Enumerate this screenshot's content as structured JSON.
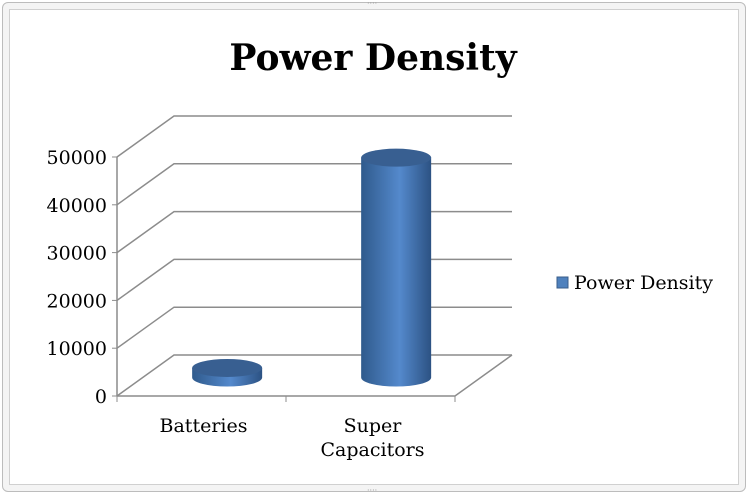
{
  "chart_data": {
    "type": "bar",
    "style": "3d-cylinder",
    "title": "Power Density",
    "categories": [
      "Batteries",
      "Super Capacitors"
    ],
    "category_lines": [
      [
        "Batteries"
      ],
      [
        "Super",
        "Capacitors"
      ]
    ],
    "series": [
      {
        "name": "Power Density",
        "values": [
          2000,
          46000
        ],
        "color": "#4f81bd"
      }
    ],
    "yticks": [
      "0",
      "10000",
      "20000",
      "30000",
      "40000",
      "50000"
    ],
    "ylim": [
      0,
      50000
    ],
    "grid": true,
    "legend": "right"
  }
}
